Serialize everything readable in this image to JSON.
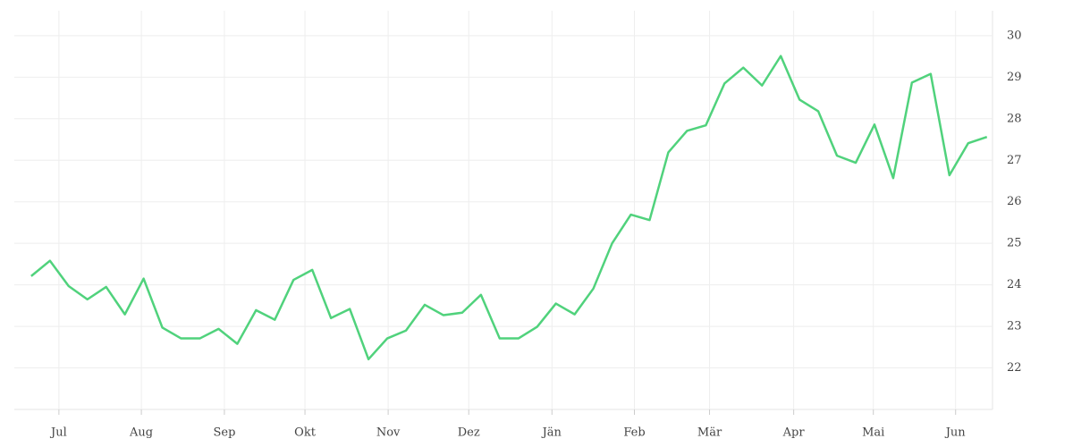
{
  "chart_data": {
    "type": "line",
    "x": [
      0,
      1,
      2,
      3,
      4,
      5,
      6,
      7,
      8,
      9,
      10,
      11,
      12,
      13,
      14,
      15,
      16,
      17,
      18,
      19,
      20,
      21,
      22,
      23,
      24,
      25,
      26,
      27,
      28,
      29,
      30,
      31,
      32,
      33,
      34,
      35,
      36,
      37,
      38,
      39,
      40,
      41,
      42,
      43,
      44,
      45,
      46,
      47,
      48,
      49,
      50,
      51
    ],
    "series": [
      {
        "color": "#50d27c",
        "values": [
          24.21,
          24.58,
          23.97,
          23.65,
          23.95,
          23.29,
          24.15,
          22.97,
          22.71,
          22.71,
          22.94,
          22.58,
          23.39,
          23.16,
          24.12,
          24.36,
          23.2,
          23.42,
          22.21,
          22.71,
          22.9,
          23.52,
          23.27,
          23.33,
          23.76,
          22.71,
          22.71,
          22.99,
          23.55,
          23.29,
          23.91,
          25.0,
          25.69,
          25.56,
          27.19,
          27.71,
          27.84,
          28.85,
          29.23,
          28.8,
          29.51,
          28.46,
          28.18,
          27.11,
          26.94,
          27.86,
          26.57,
          28.87,
          29.08,
          26.64,
          27.41,
          27.56
        ]
      }
    ],
    "xlim": [
      -0.9,
      51.3
    ],
    "xticks": [
      {
        "value": 1.48,
        "label": "Jul"
      },
      {
        "value": 5.88,
        "label": "Aug"
      },
      {
        "value": 10.31,
        "label": "Sep"
      },
      {
        "value": 14.61,
        "label": "Okt"
      },
      {
        "value": 19.05,
        "label": "Nov"
      },
      {
        "value": 23.35,
        "label": "Dez"
      },
      {
        "value": 27.79,
        "label": "Jän"
      },
      {
        "value": 32.19,
        "label": "Feb"
      },
      {
        "value": 36.2,
        "label": "Mär"
      },
      {
        "value": 40.69,
        "label": "Apr"
      },
      {
        "value": 44.94,
        "label": "Mai"
      },
      {
        "value": 49.33,
        "label": "Jun"
      }
    ],
    "ylim": [
      21,
      30.6
    ],
    "yticks": [
      22,
      23,
      24,
      25,
      26,
      27,
      28,
      29,
      30
    ],
    "grid": true
  }
}
